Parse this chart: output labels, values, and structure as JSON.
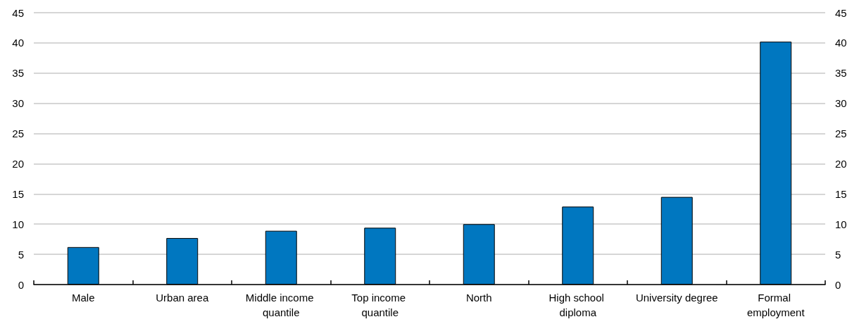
{
  "chart_data": {
    "type": "bar",
    "categories": [
      "Male",
      "Urban area",
      "Middle income quantile",
      "Top income quantile",
      "North",
      "High school diploma",
      "University degree",
      "Formal employment"
    ],
    "values": [
      6.2,
      7.7,
      8.9,
      9.4,
      10.0,
      12.9,
      14.5,
      40.2
    ],
    "color": "#0077c0",
    "ylim": [
      0,
      45
    ],
    "yticks": [
      0,
      5,
      10,
      15,
      20,
      25,
      30,
      35,
      40,
      45
    ],
    "y2lim": [
      0,
      45
    ],
    "y2ticks": [
      0,
      5,
      10,
      15,
      20,
      25,
      30,
      35,
      40,
      45
    ],
    "grid": "y"
  }
}
